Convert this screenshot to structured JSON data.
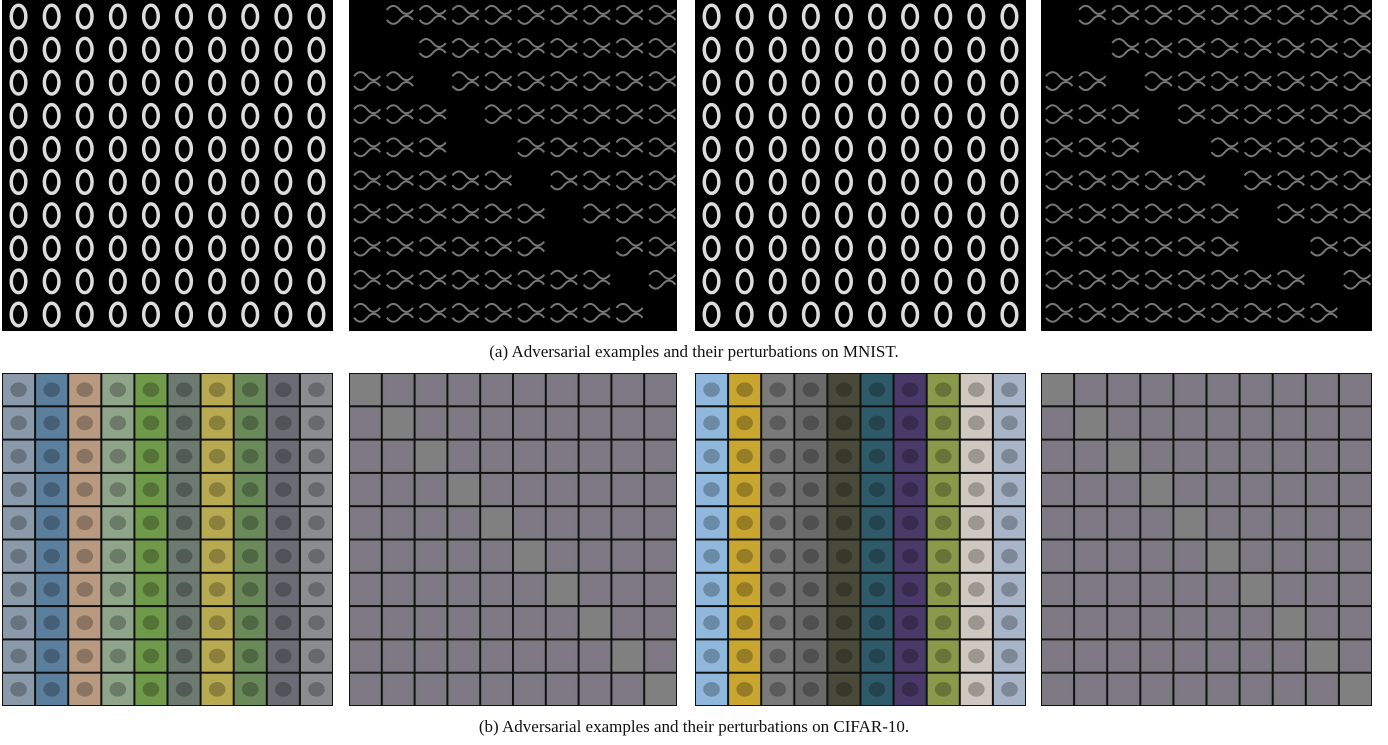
{
  "figure": {
    "captions": [
      "(a) Adversarial examples and their perturbations on MNIST.",
      "(b) Adversarial examples and their perturbations on CIFAR-10."
    ]
  }
}
